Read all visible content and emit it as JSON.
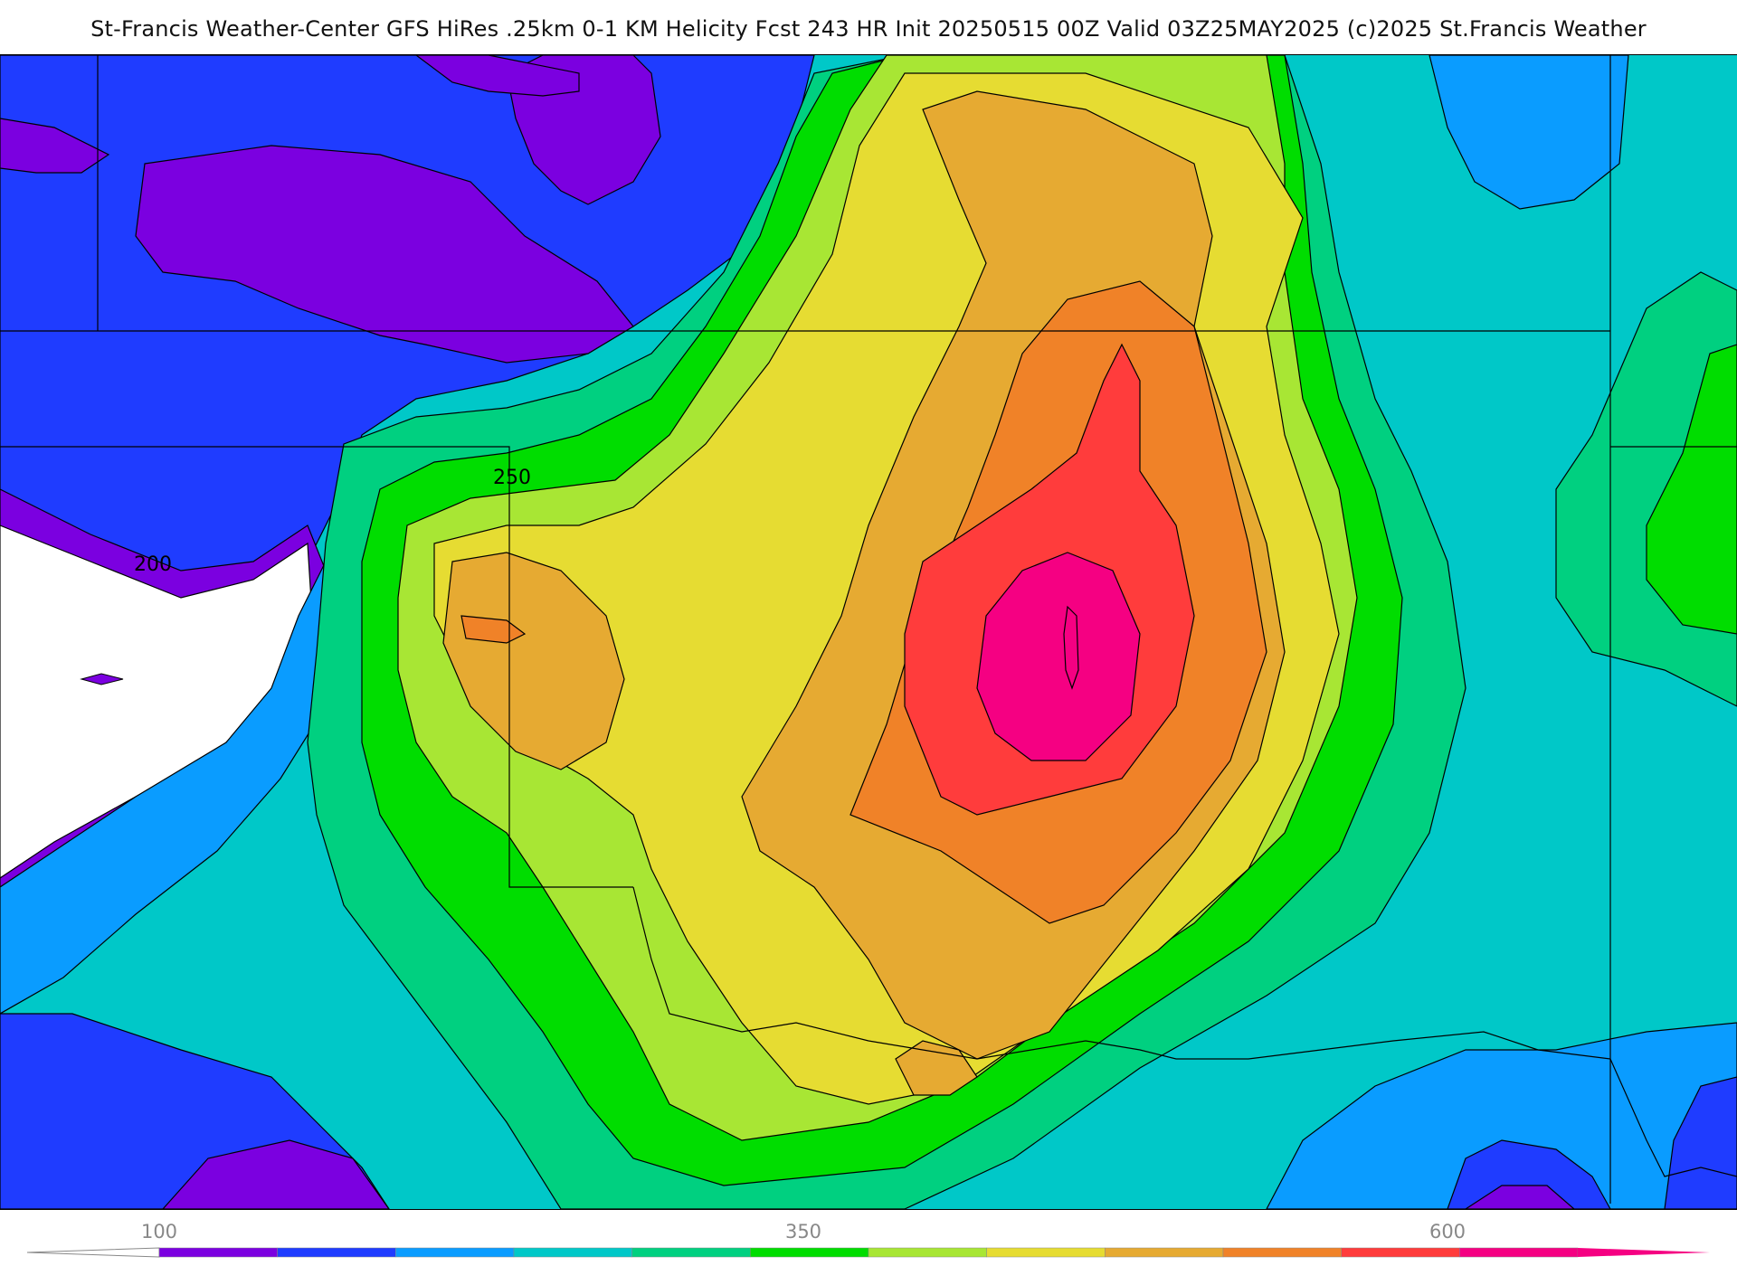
{
  "header": {
    "title": "St-Francis Weather-Center GFS HiRes .25km 0-1 KM Helicity Fcst 243 HR Init 20250515 00Z  Valid 03Z25MAY2025    (c)2025 St.Francis Weather"
  },
  "map": {
    "contour_labels": [
      "250",
      "200"
    ]
  },
  "legend": {
    "ticks": [
      "100",
      "350",
      "600"
    ],
    "colors": [
      "#7b00e0",
      "#1f3cff",
      "#0a9cff",
      "#00c8c8",
      "#00d080",
      "#00dd00",
      "#a8e634",
      "#e6dc32",
      "#e6aa32",
      "#f08228",
      "#ff3c3c",
      "#f50082"
    ]
  }
}
